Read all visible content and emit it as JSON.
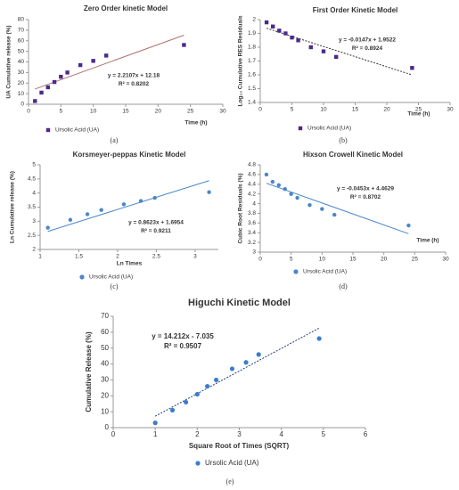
{
  "chart_data": [
    {
      "type": "scatter",
      "title": "Zero Order kinetic Model",
      "x_label": "Time (h)",
      "y_label": "UA Cumulative release (%)",
      "caption": "(a)",
      "x": [
        1,
        2,
        3,
        4,
        5,
        6,
        8,
        10,
        12,
        24
      ],
      "series": [
        {
          "name": "Ursolic Acid (UA)",
          "color": "#4b2a8a",
          "marker": "square",
          "values": [
            3,
            11,
            16,
            21,
            26,
            30,
            37,
            41,
            46,
            56
          ]
        }
      ],
      "trendline": {
        "x": [
          1,
          24
        ],
        "y": [
          14.39,
          65.24
        ],
        "color": "#b07070",
        "style": "solid"
      },
      "annotations": [
        "y = 2.2107x + 12.18",
        "R² = 0.8202"
      ],
      "xlim": [
        0,
        30
      ],
      "xticks": [
        0,
        5,
        10,
        15,
        20,
        25,
        30
      ],
      "ylim": [
        0,
        80
      ],
      "yticks": [
        0,
        10,
        20,
        30,
        40,
        50,
        60,
        70,
        80
      ]
    },
    {
      "type": "scatter",
      "title": "First Order Kinetic Model",
      "x_label": "Time (h)",
      "y_label": "Log₁₀ Cumulative RES Residuals",
      "caption": "(b)",
      "x": [
        1,
        2,
        3,
        4,
        5,
        6,
        8,
        10,
        12,
        24
      ],
      "series": [
        {
          "name": "Ursolic Acid (UA)",
          "color": "#4b2a8a",
          "marker": "square",
          "values": [
            1.98,
            1.95,
            1.92,
            1.9,
            1.87,
            1.85,
            1.8,
            1.77,
            1.73,
            1.65
          ]
        }
      ],
      "trendline": {
        "x": [
          1,
          24
        ],
        "y": [
          1.9375,
          1.5994
        ],
        "color": "#333333",
        "style": "dotted"
      },
      "annotations": [
        "y = -0.0147x + 1.9522",
        "R² = 0.8924"
      ],
      "xlim": [
        0,
        30
      ],
      "xticks": [
        0,
        5,
        10,
        15,
        20,
        25,
        30
      ],
      "ylim": [
        1.4,
        2
      ],
      "yticks": [
        1.4,
        1.5,
        1.6,
        1.7,
        1.8,
        1.9,
        2
      ]
    },
    {
      "type": "scatter",
      "title": "Korsmeyer-peppas Kinetic Model",
      "x_label": "Ln Times",
      "y_label": "Ln Cumulative release (%)",
      "caption": "(c)",
      "x": [
        1.1,
        1.39,
        1.61,
        1.79,
        2.08,
        2.3,
        2.48,
        3.18
      ],
      "series": [
        {
          "name": "Ursolic Acid (UA)",
          "color": "#4a86c8",
          "marker": "circle",
          "values": [
            2.77,
            3.05,
            3.25,
            3.4,
            3.6,
            3.72,
            3.83,
            4.03
          ]
        }
      ],
      "trendline": {
        "x": [
          1.1,
          3.18
        ],
        "y": [
          2.64,
          4.44
        ],
        "color": "#4a86c8",
        "style": "solid"
      },
      "annotations": [
        "y = 0.8623x + 1.6954",
        "R² = 0.9211"
      ],
      "xlim": [
        1,
        3.3
      ],
      "xticks": [
        1,
        1.5,
        2,
        2.5,
        3
      ],
      "ylim": [
        2,
        5
      ],
      "yticks": [
        2,
        2.5,
        3,
        3.5,
        4,
        4.5,
        5
      ]
    },
    {
      "type": "scatter",
      "title": "Hixson Crowell Kinetic Model",
      "x_label": "Time (h)",
      "y_label": "Cubic Root Residuals (%)",
      "caption": "(d)",
      "x": [
        1,
        2,
        3,
        4,
        5,
        6,
        8,
        10,
        12,
        24
      ],
      "series": [
        {
          "name": "Ursolic Acid (UA)",
          "color": "#4a86c8",
          "marker": "circle",
          "values": [
            4.6,
            4.45,
            4.38,
            4.3,
            4.2,
            4.12,
            3.97,
            3.89,
            3.77,
            3.55
          ]
        }
      ],
      "trendline": {
        "x": [
          1,
          24
        ],
        "y": [
          4.42,
          3.38
        ],
        "color": "#4a86c8",
        "style": "solid"
      },
      "annotations": [
        "y = -0.0453x + 4.4629",
        "R² = 0.8702"
      ],
      "xlim": [
        0,
        30
      ],
      "xticks": [
        0,
        5,
        10,
        15,
        20,
        25,
        30
      ],
      "ylim": [
        3,
        4.8
      ],
      "yticks": [
        3,
        3.2,
        3.4,
        3.6,
        3.8,
        4,
        4.2,
        4.4,
        4.6,
        4.8
      ]
    },
    {
      "type": "scatter",
      "title": "Higuchi Kinetic Model",
      "x_label": "Square Root of Times (SQRT)",
      "y_label": "Cumulative Release (%)",
      "caption": "(e)",
      "x": [
        1,
        1.41,
        1.73,
        2,
        2.24,
        2.45,
        2.83,
        3.16,
        3.46,
        4.9
      ],
      "series": [
        {
          "name": "Ursolic Acid (UA)",
          "color": "#3d7cc9",
          "marker": "circle",
          "values": [
            3,
            11,
            16,
            21,
            26,
            30,
            37,
            41,
            46,
            56
          ]
        }
      ],
      "trendline": {
        "x": [
          1,
          4.9
        ],
        "y": [
          7.18,
          62.6
        ],
        "color": "#1f3f7a",
        "style": "dotted"
      },
      "annotations": [
        "y = 14.212x - 7.035",
        "R² = 0.9507"
      ],
      "xlim": [
        0,
        6
      ],
      "xticks": [
        0,
        1,
        2,
        3,
        4,
        5,
        6
      ],
      "ylim": [
        0,
        70
      ],
      "yticks": [
        0,
        10,
        20,
        30,
        40,
        50,
        60,
        70
      ]
    }
  ]
}
